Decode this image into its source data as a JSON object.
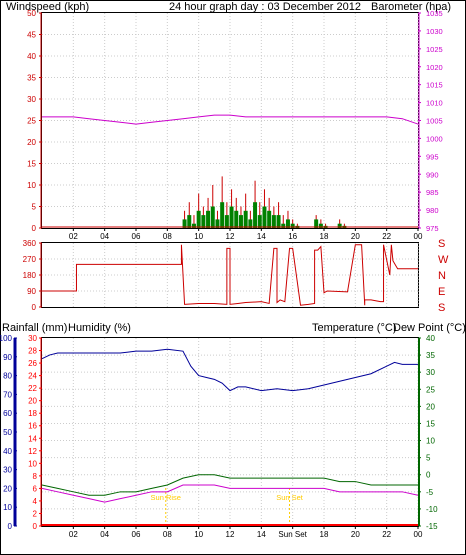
{
  "header": {
    "left_label": "Windspeed (kph)",
    "center_title": "24 hour graph day : 03 December 2012",
    "right_label": "Barometer (hpa)"
  },
  "panel3_header": {
    "rainfall_label": "Rainfall (mm)",
    "humidity_label": "Humidity (%)",
    "temperature_label": "Temperature (°C)",
    "dewpoint_label": "Dew Point (°C)"
  },
  "time_ticks": [
    "02",
    "04",
    "06",
    "08",
    "10",
    "12",
    "14",
    "16",
    "18",
    "20",
    "22",
    "00"
  ],
  "time_ticks_bottom": [
    "02",
    "04",
    "06",
    "08",
    "10",
    "12",
    "14",
    "Sun Set",
    "18",
    "20",
    "22",
    "00"
  ],
  "markers": {
    "sunrise": "Sun Rise",
    "sunset": "Sun Set"
  },
  "colors": {
    "wind_axis": "#cc0000",
    "baro_axis": "#cc00cc",
    "title": "#000080",
    "gust": "#cc0000",
    "wind_avg": "#008000",
    "wind_run": "#0000cc",
    "baro_line": "#cc00cc",
    "direction": "#cc0000",
    "humidity": "#000099",
    "temperature": "#006600",
    "dewpoint": "#cc00cc",
    "rain": "#ff0000",
    "marker": "#ffcc00"
  },
  "chart_data": [
    {
      "type": "line",
      "title": "24 hour graph day : 03 December 2012",
      "ylabel": "Windspeed (kph)",
      "ylim": [
        0,
        50
      ],
      "yticks": [
        0,
        5,
        10,
        15,
        20,
        25,
        30,
        35,
        40,
        45,
        50
      ],
      "y2label": "Barometer (hpa)",
      "y2lim": [
        975,
        1035
      ],
      "y2ticks": [
        975,
        980,
        985,
        990,
        995,
        1000,
        1005,
        1010,
        1015,
        1020,
        1025,
        1030,
        1035
      ],
      "series": [
        {
          "name": "Barometer (hpa)",
          "axis": "right",
          "x": [
            0,
            1,
            2,
            3,
            4,
            5,
            6,
            7,
            8,
            9,
            10,
            11,
            12,
            13,
            14,
            15,
            16,
            17,
            18,
            19,
            20,
            21,
            22,
            23,
            24
          ],
          "values": [
            1006,
            1006,
            1006,
            1005.5,
            1005,
            1004.5,
            1004,
            1004.5,
            1005,
            1005.5,
            1006,
            1006.5,
            1006.5,
            1006,
            1006,
            1006,
            1006,
            1006,
            1006,
            1006,
            1006,
            1006,
            1006,
            1005.5,
            1004
          ]
        }
      ],
      "wind_bars": {
        "x": [
          9.1,
          9.4,
          9.7,
          10.0,
          10.3,
          10.6,
          10.9,
          11.2,
          11.5,
          11.8,
          12.1,
          12.4,
          12.7,
          13.0,
          13.3,
          13.6,
          13.9,
          14.2,
          14.5,
          14.8,
          15.1,
          15.4,
          15.7,
          16.0,
          16.3,
          16.6,
          17.5,
          17.8,
          18.1,
          19.0,
          19.3
        ],
        "gust": [
          4,
          6,
          3,
          8,
          5,
          7,
          10,
          4,
          12,
          6,
          9,
          7,
          5,
          8,
          4,
          11,
          6,
          9,
          7,
          5,
          6,
          3,
          4,
          2,
          1,
          0,
          3,
          2,
          1,
          2,
          1
        ],
        "average": [
          2,
          3,
          1,
          4,
          3,
          4,
          5,
          2,
          6,
          3,
          5,
          4,
          3,
          4,
          2,
          6,
          3,
          5,
          4,
          3,
          3,
          1,
          2,
          1,
          0.5,
          0,
          2,
          1,
          0.5,
          1,
          0.5
        ]
      }
    },
    {
      "type": "line",
      "ylabel": "Wind direction",
      "ylim": [
        0,
        360
      ],
      "yticks": [
        0,
        90,
        180,
        270,
        360
      ],
      "compass_labels": [
        "S",
        "E",
        "N",
        "W",
        "S"
      ],
      "series": [
        {
          "name": "Wind direction",
          "x": [
            0,
            2.2,
            2.2,
            8.9,
            8.9,
            9.1,
            10.0,
            11.0,
            11.8,
            11.8,
            12.0,
            12.0,
            12.5,
            13.0,
            14.0,
            14.5,
            14.8,
            15.0,
            15.0,
            15.2,
            15.5,
            15.8,
            16.0,
            16.5,
            17.0,
            17.4,
            17.4,
            17.6,
            17.8,
            18.0,
            18.2,
            19.5,
            20.0,
            20.4,
            20.6,
            20.6,
            21.0,
            21.3,
            21.6,
            21.8,
            21.8,
            22.2,
            22.3,
            22.4,
            22.6,
            22.7,
            24
          ],
          "values": [
            90,
            90,
            240,
            240,
            350,
            15,
            20,
            20,
            15,
            330,
            330,
            15,
            20,
            25,
            30,
            20,
            330,
            330,
            25,
            40,
            30,
            330,
            330,
            10,
            15,
            20,
            320,
            320,
            340,
            80,
            90,
            85,
            350,
            350,
            10,
            40,
            40,
            35,
            30,
            30,
            350,
            180,
            350,
            260,
            230,
            215,
            215
          ]
        }
      ]
    },
    {
      "type": "line",
      "ylabel": "Rainfall (mm) / Humidity (%)",
      "ylim": [
        0,
        30
      ],
      "yticks": [
        0,
        2,
        4,
        6,
        8,
        10,
        12,
        14,
        16,
        18,
        20,
        22,
        24,
        26,
        28,
        30
      ],
      "humidity_ylim": [
        0,
        100
      ],
      "humidity_yticks": [
        0,
        10,
        20,
        30,
        40,
        50,
        60,
        70,
        80,
        90,
        100
      ],
      "y2label": "Temperature (°C) / Dew Point (°C)",
      "y2lim": [
        -15,
        40
      ],
      "y2ticks": [
        -15,
        -10,
        -5,
        0,
        5,
        10,
        15,
        20,
        25,
        30,
        35,
        40
      ],
      "series": [
        {
          "name": "Humidity (%)",
          "axis": "humidity",
          "x": [
            0,
            0.5,
            1,
            2,
            3,
            4,
            5,
            6,
            7,
            8,
            9,
            9.5,
            10,
            10.5,
            11,
            11.5,
            12,
            12.5,
            13,
            14,
            15,
            16,
            17,
            18,
            19,
            20,
            21,
            22,
            22.5,
            23,
            24
          ],
          "values": [
            89,
            91,
            92,
            92,
            92,
            92,
            92,
            93,
            93,
            94,
            93,
            85,
            80,
            79,
            78,
            76,
            72,
            74,
            74,
            72,
            73,
            72,
            73,
            75,
            77,
            79,
            81,
            85,
            87,
            86,
            86
          ]
        },
        {
          "name": "Temperature (°C)",
          "axis": "right",
          "x": [
            0,
            1,
            2,
            3,
            4,
            5,
            6,
            7,
            8,
            9,
            10,
            11,
            12,
            13,
            14,
            15,
            16,
            17,
            18,
            19,
            20,
            21,
            22,
            23,
            24
          ],
          "values": [
            -3,
            -4,
            -5,
            -6,
            -6,
            -5,
            -5,
            -4,
            -3,
            -1,
            0,
            0,
            -1,
            -1,
            -1,
            -1,
            -1,
            -1,
            -1,
            -2,
            -2,
            -3,
            -3,
            -3,
            -3
          ]
        },
        {
          "name": "Dew Point (°C)",
          "axis": "right",
          "x": [
            0,
            1,
            2,
            3,
            4,
            5,
            6,
            7,
            8,
            9,
            10,
            11,
            12,
            13,
            14,
            15,
            16,
            17,
            18,
            19,
            20,
            21,
            22,
            23,
            24
          ],
          "values": [
            -4,
            -5,
            -6,
            -7,
            -8,
            -7,
            -6,
            -5,
            -5,
            -3,
            -3,
            -3,
            -4,
            -4,
            -4,
            -4,
            -4,
            -4,
            -4,
            -5,
            -5,
            -5,
            -5,
            -5,
            -6
          ]
        },
        {
          "name": "Rainfall (mm)",
          "axis": "left",
          "x": [
            0,
            24
          ],
          "values": [
            0,
            0
          ]
        }
      ],
      "sunrise_time": 7.9,
      "sunset_time": 15.8
    }
  ]
}
